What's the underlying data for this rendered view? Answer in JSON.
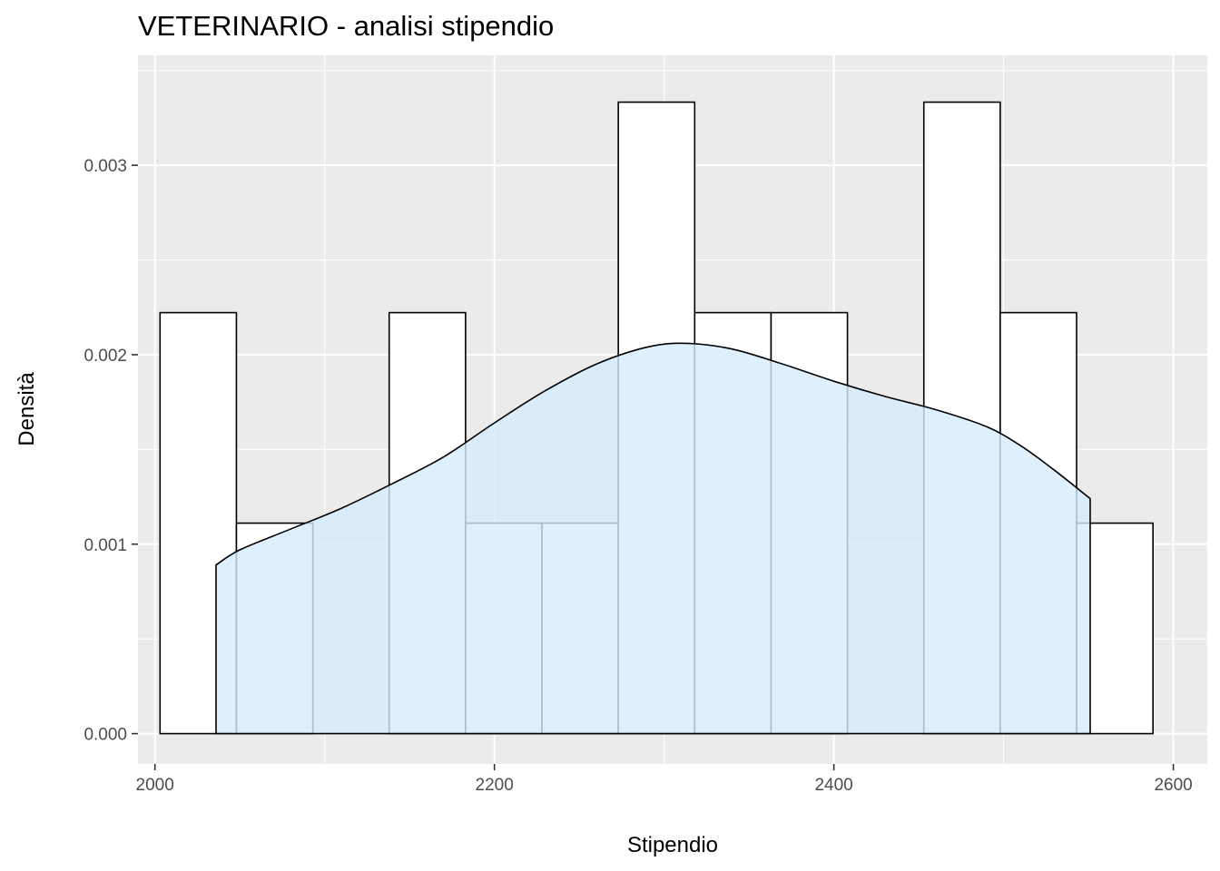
{
  "chart_data": {
    "type": "bar",
    "subtype": "histogram-with-density",
    "title": "VETERINARIO - analisi stipendio",
    "xlabel": "Stipendio",
    "ylabel": "Densità",
    "xlim": [
      1990,
      2620
    ],
    "ylim": [
      -0.00016,
      0.00358
    ],
    "x_ticks": [
      2000,
      2200,
      2400,
      2600
    ],
    "x_tick_labels": [
      "2000",
      "2200",
      "2400",
      "2600"
    ],
    "y_ticks": [
      0,
      0.001,
      0.002,
      0.003
    ],
    "y_tick_labels": [
      "0.000",
      "0.001",
      "0.002",
      "0.003"
    ],
    "grid": true,
    "bins": [
      {
        "x0": 2003,
        "x1": 2048,
        "density": 0.002222
      },
      {
        "x0": 2048,
        "x1": 2093,
        "density": 0.001111
      },
      {
        "x0": 2093,
        "x1": 2138,
        "density": 0.0
      },
      {
        "x0": 2138,
        "x1": 2183,
        "density": 0.002222
      },
      {
        "x0": 2183,
        "x1": 2228,
        "density": 0.001111
      },
      {
        "x0": 2228,
        "x1": 2273,
        "density": 0.001111
      },
      {
        "x0": 2273,
        "x1": 2318,
        "density": 0.003333
      },
      {
        "x0": 2318,
        "x1": 2363,
        "density": 0.002222
      },
      {
        "x0": 2363,
        "x1": 2408,
        "density": 0.002222
      },
      {
        "x0": 2408,
        "x1": 2453,
        "density": 0.0
      },
      {
        "x0": 2453,
        "x1": 2498,
        "density": 0.003333
      },
      {
        "x0": 2498,
        "x1": 2543,
        "density": 0.002222
      },
      {
        "x0": 2543,
        "x1": 2588,
        "density": 0.001111
      }
    ],
    "density_curve": {
      "x": [
        2036,
        2050,
        2080,
        2110,
        2140,
        2170,
        2200,
        2230,
        2260,
        2290,
        2313,
        2340,
        2370,
        2400,
        2430,
        2460,
        2490,
        2510,
        2530,
        2551
      ],
      "y": [
        0.00089,
        0.00097,
        0.00108,
        0.00119,
        0.00132,
        0.00146,
        0.00164,
        0.00181,
        0.00195,
        0.00204,
        0.00206,
        0.00203,
        0.00195,
        0.00186,
        0.00178,
        0.00171,
        0.00162,
        0.00152,
        0.00139,
        0.00124
      ]
    },
    "colors": {
      "panel_background": "#ebebeb",
      "grid_major": "#ffffff",
      "bar_fill": "#ffffff",
      "bar_stroke": "#000000",
      "density_fill": "#d6ebfd",
      "density_fill_opacity": 0.8,
      "tick_text": "#4d4d4d",
      "tick_mark": "#333333"
    }
  }
}
